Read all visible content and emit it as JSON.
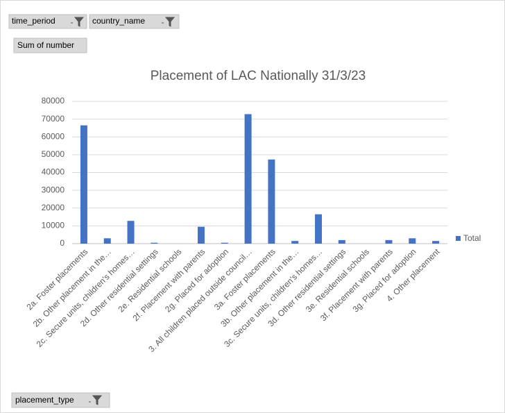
{
  "fields": {
    "filters": [
      "time_period",
      "country_name"
    ],
    "values_field": "Sum of number",
    "axis_field": "placement_type"
  },
  "chart_data": {
    "type": "bar",
    "title": "Placement of LAC Nationally 31/3/23",
    "categories": [
      "2a. Foster placements",
      "2b. Other placement in the…",
      "2c. Secure units, children's homes…",
      "2d. Other residential settings",
      "2e. Residential schools",
      "2f. Placement with parents",
      "2g. Placed for adoption",
      "3. All children placed outside council…",
      "3a. Foster placements",
      "3b. Other placement in the…",
      "3c. Secure units, children's homes…",
      "3d. Other residential settings",
      "3e. Residential schools",
      "3f. Placement with parents",
      "3g. Placed for adoption",
      "4. Other placement"
    ],
    "series": [
      {
        "name": "Total",
        "color": "#4472c4",
        "values": [
          66500,
          3000,
          12800,
          500,
          0,
          9500,
          500,
          72800,
          47300,
          1500,
          16500,
          2000,
          0,
          2000,
          3000,
          1500
        ]
      }
    ],
    "ylim": [
      0,
      80000
    ],
    "yticks": [
      0,
      10000,
      20000,
      30000,
      40000,
      50000,
      60000,
      70000,
      80000
    ],
    "grid": true,
    "legend": "right"
  }
}
